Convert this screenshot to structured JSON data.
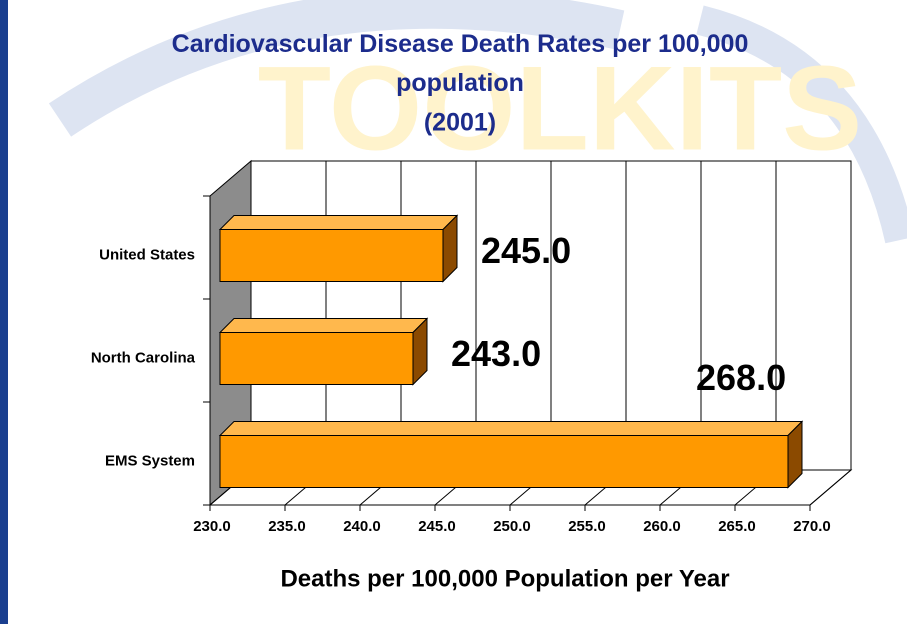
{
  "chart_data": {
    "type": "bar3d-horizontal",
    "watermark": "TOOLKITS",
    "title": "Cardiovascular Disease Death Rates per 100,000 population",
    "subtitle": "(2001)",
    "categories": [
      "United States",
      "North Carolina",
      "EMS System"
    ],
    "values": [
      245,
      243,
      268
    ],
    "value_labels": [
      "245.0",
      "243.0",
      "268.0"
    ],
    "color": "#ff9900",
    "xlim": [
      230,
      270
    ],
    "xticks": [
      {
        "value": 230,
        "label": "230.0"
      },
      {
        "value": 235,
        "label": "235.0"
      },
      {
        "value": 240,
        "label": "240.0"
      },
      {
        "value": 245,
        "label": "245.0"
      },
      {
        "value": 250,
        "label": "250.0"
      },
      {
        "value": 255,
        "label": "255.0"
      },
      {
        "value": 260,
        "label": "260.0"
      },
      {
        "value": 265,
        "label": "265.0"
      },
      {
        "value": 270,
        "label": "270.0"
      }
    ],
    "xlabel": "Deaths per 100,000 Population per Year",
    "grid": true
  }
}
